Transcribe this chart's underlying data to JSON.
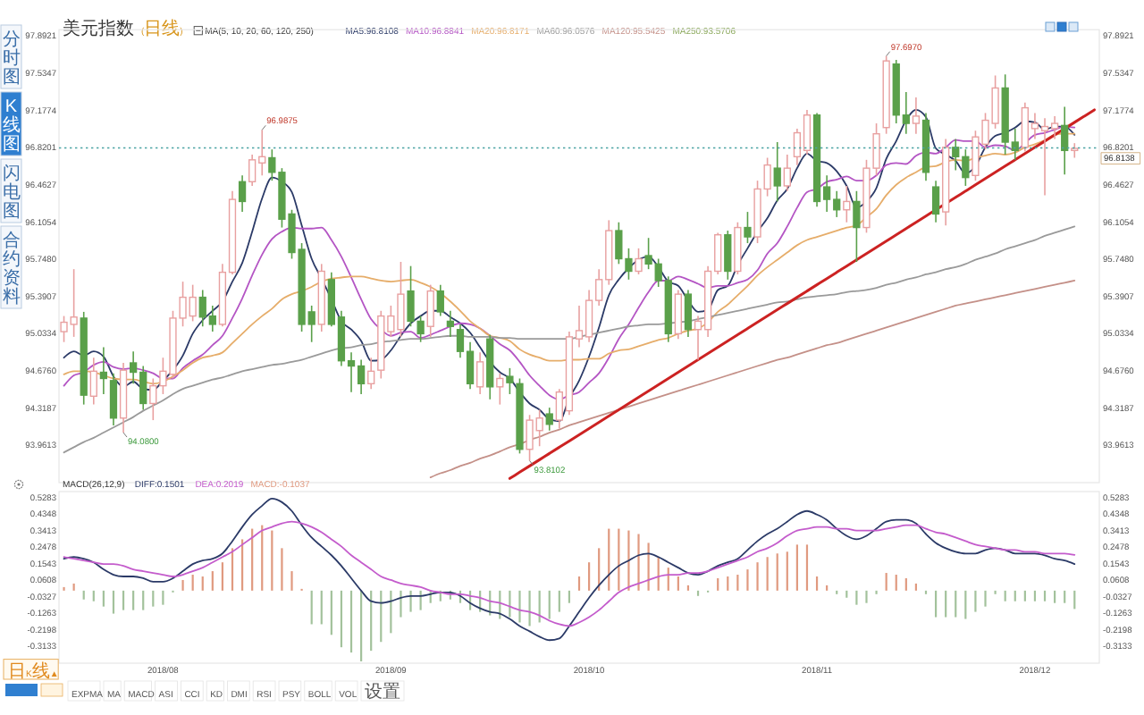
{
  "chart_data": [
    {
      "type": "candlestick",
      "title": "美元指数",
      "subtitle": "(日线)",
      "legend_title": "MA(5, 10, 20, 60, 120, 250)",
      "legend": "top left",
      "tick_labels": "y",
      "categories": [
        null,
        null,
        null,
        null,
        null,
        null,
        null,
        null,
        null,
        null,
        null,
        null,
        null,
        null,
        null,
        null,
        null,
        null,
        null,
        null,
        null,
        null,
        null,
        null,
        null,
        null,
        null,
        null,
        null,
        null,
        null,
        null,
        null,
        null,
        null,
        null,
        null,
        null,
        null,
        null,
        null,
        null,
        null,
        null,
        null,
        null,
        null,
        null,
        null,
        null,
        null,
        null,
        null,
        null,
        null,
        null,
        null,
        null,
        null,
        null,
        null,
        null,
        null,
        null,
        null,
        null,
        null,
        null,
        null,
        null,
        null,
        null,
        null,
        null,
        null,
        null,
        null,
        null,
        null,
        null,
        null,
        null,
        null,
        null,
        null,
        null,
        null,
        null,
        null,
        null,
        null,
        null,
        null,
        null,
        null,
        null,
        null,
        null,
        null,
        null,
        null,
        null,
        null,
        null,
        null
      ],
      "ylim": [
        93.6,
        97.95
      ],
      "yticks": [
        97.8921,
        97.5347,
        97.1774,
        96.8201,
        96.4627,
        96.1054,
        {
          "value": 95.748,
          "label": "95.7480"
        },
        95.3907,
        95.0334,
        {
          "value": 94.676,
          "label": "94.6760"
        },
        94.3187,
        93.9613
      ],
      "y2lim": [
        93.6,
        97.95
      ],
      "y2ticks": [
        97.8921,
        97.5347,
        97.1774,
        96.8201,
        96.4627,
        96.1054,
        {
          "value": 95.748,
          "label": "95.7480"
        },
        95.3907,
        95.0334,
        {
          "value": 94.676,
          "label": "94.6760"
        },
        94.3187,
        93.9613
      ],
      "ohlc": [
        [
          95.05,
          95.2,
          94.95,
          95.14
        ],
        [
          95.12,
          95.65,
          95.0,
          95.19
        ],
        [
          95.18,
          95.24,
          94.35,
          94.44
        ],
        [
          94.43,
          94.8,
          94.35,
          94.67
        ],
        [
          94.66,
          94.9,
          94.45,
          94.6
        ],
        [
          94.58,
          94.65,
          94.15,
          94.22
        ],
        [
          94.22,
          94.75,
          94.08,
          94.68
        ],
        [
          94.75,
          94.86,
          94.55,
          94.66
        ],
        [
          94.66,
          94.72,
          94.3,
          94.36
        ],
        [
          94.36,
          94.6,
          94.2,
          94.53
        ],
        [
          94.53,
          94.8,
          94.45,
          94.67
        ],
        [
          94.64,
          95.25,
          94.6,
          95.18
        ],
        [
          95.18,
          95.53,
          95.1,
          95.38
        ],
        [
          95.2,
          95.5,
          95.15,
          95.38
        ],
        [
          95.38,
          95.45,
          95.1,
          95.19
        ],
        [
          95.2,
          95.3,
          95.05,
          95.12
        ],
        [
          95.12,
          95.7,
          95.1,
          95.62
        ],
        [
          95.62,
          96.4,
          95.6,
          96.32
        ],
        [
          96.49,
          96.55,
          96.2,
          96.3
        ],
        [
          96.49,
          96.75,
          96.45,
          96.7
        ],
        [
          96.67,
          96.9875,
          96.55,
          96.73
        ],
        [
          96.72,
          96.8,
          96.5,
          96.58
        ],
        [
          96.58,
          96.62,
          96.05,
          96.13
        ],
        [
          96.18,
          96.22,
          95.75,
          95.81
        ],
        [
          95.84,
          95.9,
          95.05,
          95.12
        ],
        [
          95.24,
          95.3,
          94.95,
          95.12
        ],
        [
          95.12,
          95.7,
          95.05,
          95.63
        ],
        [
          95.55,
          95.62,
          95.1,
          95.12
        ],
        [
          95.19,
          95.25,
          94.72,
          94.77
        ],
        [
          94.77,
          94.85,
          94.47,
          94.72
        ],
        [
          94.72,
          94.78,
          94.45,
          94.55
        ],
        [
          94.55,
          94.8,
          94.5,
          94.67
        ],
        [
          94.68,
          95.25,
          94.6,
          95.2
        ],
        [
          95.05,
          95.3,
          95.0,
          95.2
        ],
        [
          95.07,
          95.72,
          95.0,
          95.41
        ],
        [
          95.44,
          95.68,
          95.1,
          95.15
        ],
        [
          95.15,
          95.2,
          94.95,
          95.03
        ],
        [
          95.1,
          95.5,
          95.0,
          95.44
        ],
        [
          95.44,
          95.5,
          95.2,
          95.24
        ],
        [
          95.15,
          95.25,
          95.0,
          95.1
        ],
        [
          95.07,
          95.12,
          94.8,
          94.86
        ],
        [
          94.86,
          94.95,
          94.5,
          94.55
        ],
        [
          94.52,
          94.85,
          94.45,
          94.76
        ],
        [
          94.98,
          95.02,
          94.4,
          94.52
        ],
        [
          94.52,
          94.65,
          94.35,
          94.6
        ],
        [
          94.62,
          94.7,
          94.45,
          94.56
        ],
        [
          94.55,
          94.6,
          93.88,
          93.92
        ],
        [
          93.92,
          94.25,
          93.8102,
          94.2
        ],
        [
          94.1,
          94.3,
          93.95,
          94.22
        ],
        [
          94.26,
          94.32,
          94.1,
          94.16
        ],
        [
          94.2,
          94.5,
          94.12,
          94.47
        ],
        [
          94.29,
          95.05,
          94.25,
          95.0
        ],
        [
          94.98,
          95.3,
          94.9,
          95.06
        ],
        [
          95.0,
          95.45,
          94.95,
          95.35
        ],
        [
          95.35,
          95.65,
          95.3,
          95.55
        ],
        [
          95.55,
          96.12,
          95.5,
          96.02
        ],
        [
          96.02,
          96.1,
          95.7,
          95.75
        ],
        [
          95.75,
          95.85,
          95.55,
          95.63
        ],
        [
          95.63,
          95.85,
          95.6,
          95.75
        ],
        [
          95.78,
          95.95,
          95.65,
          95.7
        ],
        [
          95.7,
          95.75,
          95.48,
          95.54
        ],
        [
          95.54,
          95.58,
          94.95,
          95.03
        ],
        [
          95.03,
          95.45,
          94.98,
          95.41
        ],
        [
          95.41,
          95.45,
          95.0,
          95.07
        ],
        [
          95.07,
          95.2,
          94.78,
          95.15
        ],
        [
          95.07,
          95.68,
          95.0,
          95.63
        ],
        [
          95.63,
          96.0,
          95.6,
          95.98
        ],
        [
          95.98,
          96.02,
          95.55,
          95.63
        ],
        [
          95.63,
          96.1,
          95.6,
          96.05
        ],
        [
          96.05,
          96.2,
          95.9,
          95.96
        ],
        [
          95.96,
          96.5,
          95.9,
          96.42
        ],
        [
          96.42,
          96.72,
          96.35,
          96.65
        ],
        [
          96.62,
          96.87,
          96.3,
          96.45
        ],
        [
          96.45,
          96.75,
          96.4,
          96.62
        ],
        [
          96.73,
          97.0,
          96.65,
          96.96
        ],
        [
          96.79,
          97.18,
          96.75,
          97.13
        ],
        [
          97.13,
          97.15,
          96.25,
          96.3
        ],
        [
          96.44,
          96.55,
          96.2,
          96.32
        ],
        [
          96.32,
          96.4,
          96.15,
          96.22
        ],
        [
          96.22,
          96.45,
          96.1,
          96.3
        ],
        [
          96.3,
          96.4,
          95.72,
          96.05
        ],
        [
          96.05,
          96.7,
          96.0,
          96.62
        ],
        [
          96.62,
          97.05,
          96.55,
          96.95
        ],
        [
          97.01,
          97.697,
          96.95,
          97.65
        ],
        [
          97.62,
          97.66,
          97.05,
          97.13
        ],
        [
          97.13,
          97.35,
          96.95,
          97.05
        ],
        [
          97.05,
          97.3,
          96.95,
          97.12
        ],
        [
          97.08,
          97.15,
          96.5,
          96.58
        ],
        [
          96.44,
          96.5,
          96.1,
          96.18
        ],
        [
          96.2,
          96.9,
          96.07,
          96.82
        ],
        [
          96.82,
          96.9,
          96.6,
          96.73
        ],
        [
          96.73,
          96.8,
          96.45,
          96.53
        ],
        [
          96.55,
          96.98,
          96.5,
          96.92
        ],
        [
          96.85,
          97.15,
          96.8,
          97.08
        ],
        [
          97.05,
          97.51,
          97.0,
          97.39
        ],
        [
          97.39,
          97.52,
          96.75,
          96.87
        ],
        [
          96.87,
          97.0,
          96.7,
          96.79
        ],
        [
          96.82,
          97.25,
          96.78,
          97.2
        ],
        [
          97.0,
          97.15,
          96.9,
          97.05
        ],
        [
          96.98,
          97.1,
          96.36,
          97.02
        ],
        [
          97.0,
          97.12,
          96.9,
          97.05
        ],
        [
          97.03,
          97.21,
          96.56,
          96.79
        ],
        [
          96.79,
          96.86,
          96.72,
          96.81
        ],
        null,
        null
      ],
      "colors": [
        "#e8a0a0",
        "#e8a0a0",
        "#5aa04a",
        "#e8a0a0",
        "#5aa04a",
        "#5aa04a",
        "#e8a0a0",
        "#5aa04a",
        "#5aa04a",
        "#e8a0a0",
        "#e8a0a0",
        "#e8a0a0",
        "#e8a0a0",
        "#e8a0a0",
        "#5aa04a",
        "#5aa04a",
        "#e8a0a0",
        "#e8a0a0",
        "#5aa04a",
        "#e8a0a0",
        "#e8a0a0",
        "#5aa04a",
        "#5aa04a",
        "#5aa04a",
        "#5aa04a",
        "#5aa04a",
        "#e8a0a0",
        "#5aa04a",
        "#5aa04a",
        "#5aa04a",
        "#5aa04a",
        "#e8a0a0",
        "#e8a0a0",
        "#e8a0a0",
        "#e8a0a0",
        "#5aa04a",
        "#5aa04a",
        "#e8a0a0",
        "#5aa04a",
        "#5aa04a",
        "#5aa04a",
        "#5aa04a",
        "#e8a0a0",
        "#5aa04a",
        "#e8a0a0",
        "#5aa04a",
        "#5aa04a",
        "#e8a0a0",
        "#e8a0a0",
        "#5aa04a",
        "#e8a0a0",
        "#e8a0a0",
        "#e8a0a0",
        "#e8a0a0",
        "#e8a0a0",
        "#e8a0a0",
        "#5aa04a",
        "#5aa04a",
        "#e8a0a0",
        "#5aa04a",
        "#5aa04a",
        "#5aa04a",
        "#e8a0a0",
        "#5aa04a",
        "#e8a0a0",
        "#e8a0a0",
        "#e8a0a0",
        "#5aa04a",
        "#e8a0a0",
        "#5aa04a",
        "#e8a0a0",
        "#e8a0a0",
        "#5aa04a",
        "#e8a0a0",
        "#e8a0a0",
        "#e8a0a0",
        "#5aa04a",
        "#5aa04a",
        "#5aa04a",
        "#e8a0a0",
        "#5aa04a",
        "#e8a0a0",
        "#e8a0a0",
        "#e8a0a0",
        "#5aa04a",
        "#5aa04a",
        "#e8a0a0",
        "#5aa04a",
        "#5aa04a",
        "#e8a0a0",
        "#5aa04a",
        "#5aa04a",
        "#e8a0a0",
        "#e8a0a0",
        "#e8a0a0",
        "#5aa04a",
        "#5aa04a",
        "#e8a0a0",
        "#e8a0a0",
        "#e8a0a0",
        "#e8a0a0",
        "#5aa04a",
        "#e8a0a0",
        null,
        null
      ],
      "series": [
        {
          "name": "MA5:96.8108",
          "type": "line",
          "color": "#2b3a67",
          "values": [
            94.8,
            94.86,
            94.82,
            94.86,
            94.81,
            94.62,
            94.52,
            94.57,
            94.5,
            94.49,
            94.58,
            94.68,
            94.82,
            95.03,
            95.16,
            95.25,
            95.34,
            95.53,
            95.71,
            96.01,
            96.33,
            96.53,
            96.49,
            96.39,
            96.07,
            95.75,
            95.56,
            95.36,
            95.15,
            95.07,
            94.96,
            94.77,
            94.78,
            94.87,
            95.01,
            95.13,
            95.2,
            95.25,
            95.25,
            95.19,
            95.13,
            95.04,
            94.9,
            94.76,
            94.66,
            94.6,
            94.47,
            94.36,
            94.3,
            94.21,
            94.19,
            94.41,
            94.58,
            94.81,
            95.09,
            95.4,
            95.55,
            95.66,
            95.74,
            95.77,
            95.67,
            95.53,
            95.49,
            95.35,
            95.24,
            95.26,
            95.45,
            95.49,
            95.69,
            95.85,
            96.01,
            96.14,
            96.31,
            96.42,
            96.62,
            96.76,
            96.69,
            96.67,
            96.59,
            96.45,
            96.24,
            96.3,
            96.43,
            96.71,
            96.88,
            97.08,
            97.18,
            97.11,
            96.81,
            96.75,
            96.69,
            96.57,
            96.64,
            96.82,
            96.93,
            96.96,
            97.01,
            97.07,
            97.06,
            96.99,
            97.02,
            97.02,
            96.94,
            null,
            null
          ]
        },
        {
          "name": "MA10:96.8841",
          "type": "line",
          "color": "#b455c4",
          "values": [
            94.53,
            94.63,
            94.66,
            94.73,
            94.76,
            94.71,
            94.69,
            94.7,
            94.68,
            94.65,
            94.6,
            94.6,
            94.7,
            94.77,
            94.83,
            94.92,
            95.01,
            95.18,
            95.37,
            95.59,
            95.79,
            95.94,
            96.01,
            96.05,
            96.04,
            96.04,
            96.05,
            95.93,
            95.77,
            95.57,
            95.36,
            95.17,
            95.07,
            95.01,
            95.04,
            95.05,
            94.99,
            95.02,
            95.06,
            95.1,
            95.13,
            95.12,
            95.08,
            95.01,
            94.93,
            94.87,
            94.76,
            94.63,
            94.53,
            94.44,
            94.4,
            94.44,
            94.47,
            94.56,
            94.65,
            94.8,
            94.98,
            95.12,
            95.28,
            95.43,
            95.54,
            95.54,
            95.58,
            95.55,
            95.51,
            95.47,
            95.49,
            95.49,
            95.52,
            95.55,
            95.64,
            95.8,
            95.9,
            96.06,
            96.24,
            96.39,
            96.42,
            96.49,
            96.51,
            96.54,
            96.5,
            96.5,
            96.55,
            96.65,
            96.67,
            96.66,
            96.74,
            96.77,
            96.76,
            96.82,
            96.89,
            96.88,
            96.88,
            96.82,
            96.84,
            96.83,
            96.79,
            96.86,
            96.94,
            96.96,
            96.99,
            97.02,
            97.01,
            null,
            null
          ]
        },
        {
          "name": "MA20:96.8171",
          "type": "line",
          "color": "#e6ad6a",
          "values": [
            94.64,
            94.67,
            94.67,
            94.66,
            94.63,
            94.6,
            94.59,
            94.59,
            94.57,
            94.55,
            94.57,
            94.62,
            94.68,
            94.75,
            94.8,
            94.82,
            94.85,
            94.94,
            95.03,
            95.12,
            95.2,
            95.27,
            95.36,
            95.41,
            95.44,
            95.48,
            95.53,
            95.56,
            95.57,
            95.58,
            95.58,
            95.56,
            95.54,
            95.53,
            95.54,
            95.55,
            95.52,
            95.48,
            95.42,
            95.34,
            95.25,
            95.15,
            95.08,
            95.01,
            94.99,
            94.96,
            94.88,
            94.83,
            94.8,
            94.77,
            94.77,
            94.78,
            94.78,
            94.79,
            94.79,
            94.84,
            94.87,
            94.88,
            94.91,
            94.94,
            94.97,
            94.99,
            95.03,
            95.06,
            95.08,
            95.14,
            95.24,
            95.31,
            95.4,
            95.49,
            95.59,
            95.67,
            95.74,
            95.81,
            95.88,
            95.93,
            95.96,
            95.99,
            96.02,
            96.05,
            96.07,
            96.15,
            96.23,
            96.36,
            96.46,
            96.53,
            96.58,
            96.63,
            96.64,
            96.68,
            96.7,
            96.69,
            96.72,
            96.74,
            96.76,
            96.75,
            96.77,
            96.82,
            96.85,
            96.89,
            96.94,
            96.95,
            96.95,
            null,
            null
          ]
        },
        {
          "name": "MA60:96.0576",
          "type": "line",
          "color": "#9a9a9a",
          "values": [
            93.89,
            93.94,
            93.99,
            94.03,
            94.08,
            94.13,
            94.18,
            94.23,
            94.29,
            94.34,
            94.39,
            94.45,
            94.5,
            94.53,
            94.56,
            94.59,
            94.61,
            94.64,
            94.67,
            94.69,
            94.71,
            94.73,
            94.74,
            94.76,
            94.78,
            94.81,
            94.84,
            94.87,
            94.89,
            94.9,
            94.92,
            94.93,
            94.95,
            94.96,
            94.97,
            94.98,
            94.98,
            94.99,
            95.0,
            95.01,
            95.01,
            95.0,
            95.0,
            95.0,
            94.99,
            94.99,
            94.98,
            94.98,
            94.98,
            94.98,
            94.98,
            94.98,
            95.0,
            95.02,
            95.04,
            95.06,
            95.08,
            95.1,
            95.11,
            95.12,
            95.12,
            95.13,
            95.14,
            95.15,
            95.17,
            95.19,
            95.21,
            95.23,
            95.25,
            95.27,
            95.29,
            95.31,
            95.33,
            95.34,
            95.36,
            95.38,
            95.39,
            95.4,
            95.41,
            95.43,
            95.44,
            95.45,
            95.47,
            95.5,
            95.52,
            95.55,
            95.57,
            95.6,
            95.62,
            95.65,
            95.67,
            95.7,
            95.74,
            95.77,
            95.8,
            95.84,
            95.87,
            95.9,
            95.93,
            95.97,
            96.0,
            96.03,
            96.06,
            null,
            null
          ]
        },
        {
          "name": "MA120:95.5425",
          "type": "line",
          "color": "#c49088",
          "values": [
            null,
            null,
            null,
            null,
            null,
            null,
            null,
            null,
            null,
            null,
            null,
            null,
            null,
            null,
            null,
            null,
            null,
            null,
            null,
            null,
            null,
            null,
            null,
            null,
            null,
            null,
            null,
            null,
            null,
            null,
            null,
            null,
            null,
            null,
            null,
            null,
            null,
            93.65,
            93.69,
            93.72,
            93.76,
            93.79,
            93.83,
            93.86,
            93.9,
            93.94,
            93.97,
            94.01,
            94.04,
            94.08,
            94.11,
            94.15,
            94.18,
            94.21,
            94.24,
            94.27,
            94.3,
            94.33,
            94.36,
            94.39,
            94.42,
            94.45,
            94.48,
            94.51,
            94.54,
            94.57,
            94.6,
            94.63,
            94.66,
            94.69,
            94.72,
            94.75,
            94.78,
            94.8,
            94.83,
            94.86,
            94.89,
            94.92,
            94.94,
            94.97,
            95.0,
            95.03,
            95.06,
            95.09,
            95.12,
            95.15,
            95.18,
            95.21,
            95.24,
            95.27,
            95.3,
            95.32,
            95.34,
            95.36,
            95.38,
            95.4,
            95.42,
            95.44,
            95.46,
            95.48,
            95.5,
            95.52,
            95.54,
            null,
            null
          ]
        },
        {
          "name": "MA250:93.5706",
          "type": "line",
          "color": "#8aa85a",
          "values": [
            null,
            null,
            null,
            null,
            null,
            null,
            null,
            null,
            null,
            null,
            null,
            null,
            null,
            null,
            null,
            null,
            null,
            null,
            null,
            null,
            null,
            null,
            null,
            null,
            null,
            null,
            null,
            null,
            null,
            null,
            null,
            null,
            null,
            null,
            null,
            null,
            null,
            null,
            null,
            null,
            null,
            null,
            null,
            null,
            null,
            null,
            null,
            null,
            null,
            null,
            null,
            null,
            null,
            null,
            null,
            null,
            null,
            null,
            null,
            null,
            null,
            null,
            null,
            null,
            null,
            null,
            null,
            null,
            null,
            null,
            null,
            null,
            null,
            null,
            null,
            null,
            null,
            null,
            null,
            null,
            null,
            null,
            null,
            null,
            null,
            null,
            null,
            null,
            null,
            null,
            null,
            null,
            null,
            null,
            null,
            null,
            null,
            null,
            null,
            null,
            null,
            null,
            null,
            null,
            null
          ]
        },
        {
          "type": "line",
          "color": "#cc2222",
          "values": [
            null,
            null,
            null,
            null,
            null,
            null,
            null,
            null,
            null,
            null,
            null,
            null,
            null,
            null,
            null,
            null,
            null,
            null,
            null,
            null,
            null,
            null,
            null,
            null,
            null,
            null,
            null,
            null,
            null,
            null,
            null,
            null,
            null,
            null,
            null,
            null,
            null,
            null,
            null,
            null,
            null,
            null,
            null,
            null,
            null,
            93.64,
            93.7,
            93.76,
            93.82,
            93.88,
            93.94,
            94.0,
            94.06,
            94.12,
            94.18,
            94.24,
            94.3,
            94.36,
            94.42,
            94.48,
            94.54,
            94.6,
            94.66,
            94.72,
            94.78,
            94.84,
            94.9,
            94.96,
            95.02,
            95.08,
            95.14,
            95.2,
            95.26,
            95.32,
            95.38,
            95.44,
            95.5,
            95.56,
            95.62,
            95.68,
            95.74,
            95.8,
            95.86,
            95.92,
            95.98,
            96.04,
            96.1,
            96.16,
            96.22,
            96.28,
            96.34,
            96.4,
            96.46,
            96.52,
            96.58,
            96.64,
            96.7,
            96.76,
            96.82,
            96.88,
            96.94,
            97.0,
            97.06,
            97.12,
            97.18
          ]
        }
      ],
      "ref_lines": [
        {
          "axis": "y2",
          "value": 96.8138,
          "color": "#4aa3a3",
          "line_style": "dotted"
        }
      ],
      "annotations": [
        "96.9875",
        "94.0800",
        "93.8102",
        "97.6970",
        "96.8138"
      ]
    },
    {
      "type": "bar",
      "title": "MACD(26,12,9)",
      "legend": "top left",
      "categories": [
        null,
        null,
        null,
        null,
        null,
        null,
        null,
        null,
        null,
        null,
        "2018/08",
        null,
        null,
        null,
        null,
        null,
        null,
        null,
        null,
        null,
        null,
        null,
        null,
        null,
        null,
        null,
        null,
        null,
        null,
        null,
        null,
        null,
        null,
        "2018/09",
        null,
        null,
        null,
        null,
        null,
        null,
        null,
        null,
        null,
        null,
        null,
        null,
        null,
        null,
        null,
        null,
        null,
        null,
        null,
        "2018/10",
        null,
        null,
        null,
        null,
        null,
        null,
        null,
        null,
        null,
        null,
        null,
        null,
        null,
        null,
        null,
        null,
        null,
        null,
        null,
        null,
        null,
        null,
        "2018/11",
        null,
        null,
        null,
        null,
        null,
        null,
        null,
        null,
        null,
        null,
        null,
        null,
        null,
        null,
        null,
        null,
        null,
        null,
        null,
        null,
        null,
        "2018/12",
        null,
        null,
        null,
        null,
        null,
        null
      ],
      "ylim": [
        -0.41,
        0.56
      ],
      "yticks": [
        0.5283,
        0.4348,
        0.3413,
        0.2478,
        0.1543,
        0.0608,
        -0.0327,
        -0.1263,
        -0.2198,
        -0.3133
      ],
      "y2lim": [
        -0.41,
        0.56
      ],
      "y2ticks": [
        0.5283,
        0.4348,
        0.3413,
        0.2478,
        0.1543,
        0.0608,
        -0.0327,
        -0.1263,
        -0.2198,
        -0.3133
      ],
      "series": [
        {
          "name": "DIFF:0.1501",
          "type": "line",
          "color": "#2b3a67",
          "values": [
            0.18,
            0.19,
            0.18,
            0.16,
            0.12,
            0.09,
            0.08,
            0.08,
            0.07,
            0.05,
            0.05,
            0.07,
            0.11,
            0.15,
            0.17,
            0.18,
            0.21,
            0.28,
            0.36,
            0.43,
            0.48,
            0.52,
            0.5,
            0.45,
            0.37,
            0.3,
            0.25,
            0.2,
            0.14,
            0.07,
            0.0,
            -0.06,
            -0.07,
            -0.06,
            -0.04,
            -0.03,
            -0.03,
            -0.02,
            -0.01,
            -0.01,
            -0.03,
            -0.07,
            -0.1,
            -0.12,
            -0.13,
            -0.16,
            -0.2,
            -0.23,
            -0.26,
            -0.28,
            -0.27,
            -0.2,
            -0.12,
            -0.04,
            0.03,
            0.09,
            0.14,
            0.17,
            0.2,
            0.21,
            0.19,
            0.16,
            0.13,
            0.1,
            0.09,
            0.11,
            0.14,
            0.16,
            0.18,
            0.23,
            0.28,
            0.32,
            0.35,
            0.39,
            0.43,
            0.45,
            0.43,
            0.4,
            0.35,
            0.31,
            0.29,
            0.31,
            0.35,
            0.39,
            0.4,
            0.4,
            0.38,
            0.32,
            0.27,
            0.24,
            0.22,
            0.21,
            0.21,
            0.23,
            0.24,
            0.23,
            0.21,
            0.21,
            0.21,
            0.2,
            0.18,
            0.17,
            0.1501,
            null,
            null
          ]
        },
        {
          "name": "DEA:0.2019",
          "type": "line",
          "color": "#c45ccc",
          "values": [
            0.19,
            0.18,
            0.17,
            0.16,
            0.15,
            0.15,
            0.14,
            0.12,
            0.11,
            0.1,
            0.09,
            0.08,
            0.09,
            0.11,
            0.13,
            0.16,
            0.19,
            0.22,
            0.26,
            0.3,
            0.34,
            0.36,
            0.38,
            0.39,
            0.38,
            0.36,
            0.33,
            0.29,
            0.25,
            0.2,
            0.16,
            0.12,
            0.08,
            0.06,
            0.04,
            0.03,
            0.02,
            0.0,
            -0.01,
            -0.02,
            -0.02,
            -0.03,
            -0.04,
            -0.06,
            -0.07,
            -0.09,
            -0.11,
            -0.12,
            -0.14,
            -0.17,
            -0.19,
            -0.2,
            -0.18,
            -0.15,
            -0.11,
            -0.06,
            -0.01,
            0.02,
            0.04,
            0.06,
            0.08,
            0.09,
            0.09,
            0.1,
            0.1,
            0.11,
            0.13,
            0.15,
            0.17,
            0.19,
            0.22,
            0.24,
            0.27,
            0.31,
            0.34,
            0.35,
            0.36,
            0.36,
            0.35,
            0.35,
            0.34,
            0.34,
            0.34,
            0.35,
            0.36,
            0.37,
            0.37,
            0.35,
            0.33,
            0.32,
            0.3,
            0.28,
            0.26,
            0.25,
            0.24,
            0.23,
            0.23,
            0.22,
            0.22,
            0.21,
            0.21,
            0.21,
            0.2019,
            null,
            null
          ]
        },
        {
          "name": "MACD:-0.1037",
          "type": "bar",
          "color": "#e09a80",
          "values": [
            0.02,
            0.04,
            -0.05,
            -0.06,
            -0.09,
            -0.13,
            -0.11,
            -0.11,
            -0.11,
            -0.09,
            -0.08,
            -0.01,
            0.06,
            0.09,
            0.08,
            0.11,
            0.16,
            0.24,
            0.29,
            0.35,
            0.37,
            0.34,
            0.24,
            0.11,
            0.01,
            -0.19,
            -0.19,
            -0.25,
            -0.32,
            -0.35,
            -0.4,
            -0.34,
            -0.29,
            -0.24,
            -0.15,
            -0.12,
            -0.11,
            -0.07,
            -0.06,
            -0.05,
            -0.07,
            -0.11,
            -0.12,
            -0.14,
            -0.16,
            -0.15,
            -0.18,
            -0.2,
            -0.18,
            -0.16,
            -0.12,
            -0.07,
            0.08,
            0.16,
            0.24,
            0.35,
            0.35,
            0.34,
            0.32,
            0.27,
            0.19,
            0.13,
            0.08,
            0.03,
            -0.03,
            -0.01,
            0.07,
            0.08,
            0.09,
            0.12,
            0.16,
            0.19,
            0.21,
            0.22,
            0.26,
            0.26,
            0.08,
            0.03,
            -0.02,
            -0.04,
            -0.08,
            -0.07,
            -0.02,
            0.1,
            0.09,
            0.07,
            0.04,
            -0.02,
            -0.15,
            -0.15,
            -0.15,
            -0.16,
            -0.12,
            -0.09,
            -0.02,
            -0.06,
            -0.06,
            -0.06,
            -0.06,
            -0.06,
            -0.07,
            -0.07,
            -0.1037,
            null,
            null
          ],
          "colors": [
            "#e09a80",
            "#e09a80",
            "#a3c29c",
            "#a3c29c",
            "#a3c29c",
            "#a3c29c",
            "#a3c29c",
            "#a3c29c",
            "#a3c29c",
            "#a3c29c",
            "#a3c29c",
            "#a3c29c",
            "#e09a80",
            "#e09a80",
            "#e09a80",
            "#e09a80",
            "#e09a80",
            "#e09a80",
            "#e09a80",
            "#e09a80",
            "#e09a80",
            "#e09a80",
            "#e09a80",
            "#e09a80",
            "#e09a80",
            "#a3c29c",
            "#a3c29c",
            "#a3c29c",
            "#a3c29c",
            "#a3c29c",
            "#a3c29c",
            "#a3c29c",
            "#a3c29c",
            "#a3c29c",
            "#a3c29c",
            "#a3c29c",
            "#a3c29c",
            "#a3c29c",
            "#a3c29c",
            "#a3c29c",
            "#a3c29c",
            "#a3c29c",
            "#a3c29c",
            "#a3c29c",
            "#a3c29c",
            "#a3c29c",
            "#a3c29c",
            "#a3c29c",
            "#a3c29c",
            "#a3c29c",
            "#a3c29c",
            "#a3c29c",
            "#e09a80",
            "#e09a80",
            "#e09a80",
            "#e09a80",
            "#e09a80",
            "#e09a80",
            "#e09a80",
            "#e09a80",
            "#e09a80",
            "#e09a80",
            "#e09a80",
            "#e09a80",
            "#a3c29c",
            "#a3c29c",
            "#e09a80",
            "#e09a80",
            "#e09a80",
            "#e09a80",
            "#e09a80",
            "#e09a80",
            "#e09a80",
            "#e09a80",
            "#e09a80",
            "#e09a80",
            "#e09a80",
            "#e09a80",
            "#a3c29c",
            "#a3c29c",
            "#a3c29c",
            "#a3c29c",
            "#a3c29c",
            "#e09a80",
            "#e09a80",
            "#e09a80",
            "#e09a80",
            "#a3c29c",
            "#a3c29c",
            "#a3c29c",
            "#a3c29c",
            "#a3c29c",
            "#a3c29c",
            "#a3c29c",
            "#a3c29c",
            "#a3c29c",
            "#a3c29c",
            "#a3c29c",
            "#a3c29c",
            "#a3c29c",
            "#a3c29c",
            "#a3c29c",
            "#a3c29c",
            null,
            null
          ]
        }
      ]
    },
    {
      "type": "other",
      "annotations": [
        "分时图",
        "K线图",
        "闪电图",
        "合约资料"
      ]
    },
    {
      "type": "other",
      "annotations": [
        "日K线▲",
        "EXPMA",
        "MA",
        "MACD",
        "ASI",
        "CCI",
        "KD",
        "DMI",
        "RSI",
        "PSY",
        "BOLL",
        "VOL",
        "设置"
      ]
    }
  ]
}
